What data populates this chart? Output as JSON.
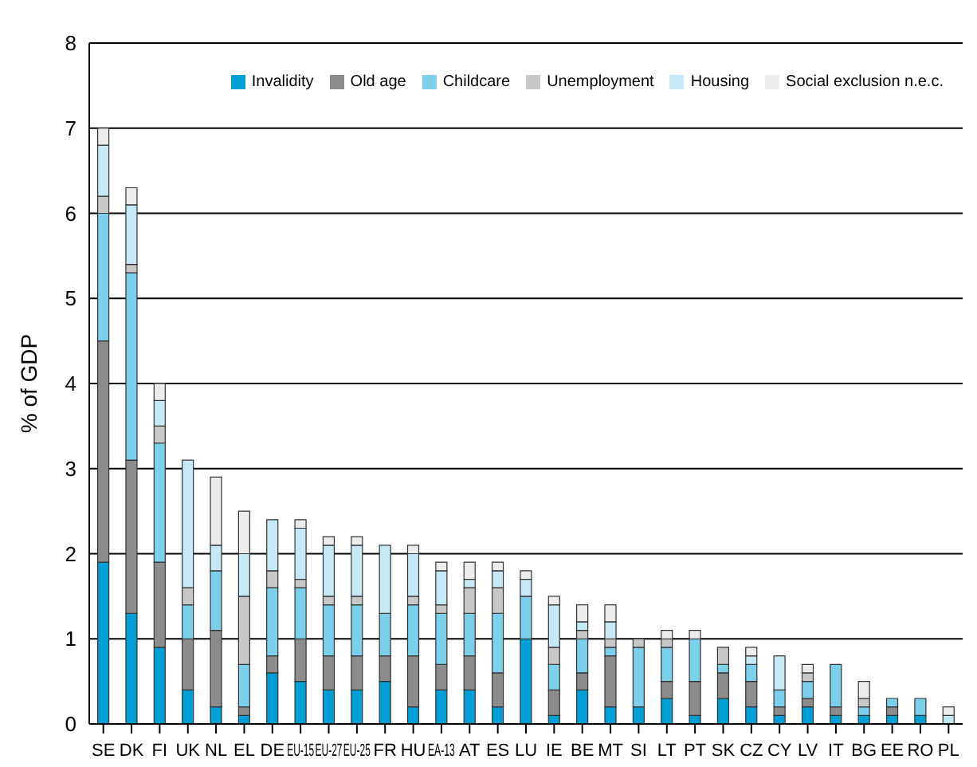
{
  "chart_data": {
    "type": "bar",
    "stacked": true,
    "ylabel": "% of GDP",
    "categories": [
      "SE",
      "DK",
      "FI",
      "UK",
      "NL",
      "EL",
      "DE",
      "EU-15",
      "EU-27",
      "EU-25",
      "FR",
      "HU",
      "EA-13",
      "AT",
      "ES",
      "LU",
      "IE",
      "BE",
      "MT",
      "SI",
      "LT",
      "PT",
      "SK",
      "CZ",
      "CY",
      "LV",
      "IT",
      "BG",
      "EE",
      "RO",
      "PL"
    ],
    "series": [
      {
        "name": "Invalidity",
        "color": "#00a0d6",
        "values": [
          1.9,
          1.3,
          0.9,
          0.4,
          0.2,
          0.1,
          0.6,
          0.5,
          0.4,
          0.4,
          0.5,
          0.2,
          0.4,
          0.4,
          0.2,
          1.0,
          0.1,
          0.4,
          0.2,
          0.2,
          0.3,
          0.1,
          0.3,
          0.2,
          0.1,
          0.2,
          0.1,
          0.1,
          0.1,
          0.1,
          0
        ]
      },
      {
        "name": "Old age",
        "color": "#8c8c8c",
        "values": [
          2.6,
          1.8,
          1.0,
          0.6,
          0.9,
          0.1,
          0.2,
          0.5,
          0.4,
          0.4,
          0.3,
          0.6,
          0.3,
          0.4,
          0.4,
          0,
          0.3,
          0.2,
          0.6,
          0,
          0.2,
          0.4,
          0.3,
          0.3,
          0.1,
          0.1,
          0.1,
          0,
          0.1,
          0,
          0
        ]
      },
      {
        "name": "Childcare",
        "color": "#7dd0ec",
        "values": [
          1.5,
          2.2,
          1.4,
          0.4,
          0.7,
          0.5,
          0.8,
          0.6,
          0.6,
          0.6,
          0.5,
          0.6,
          0.6,
          0.5,
          0.7,
          0.5,
          0.3,
          0.4,
          0.1,
          0.7,
          0.4,
          0.5,
          0.1,
          0.2,
          0.2,
          0.2,
          0.5,
          0.1,
          0.1,
          0.2,
          0
        ]
      },
      {
        "name": "Unemployment",
        "color": "#c8c8c8",
        "values": [
          0.2,
          0.1,
          0.2,
          0.2,
          0,
          0.8,
          0.2,
          0.1,
          0.1,
          0.1,
          0,
          0.1,
          0.1,
          0.3,
          0.3,
          0,
          0.2,
          0.1,
          0.1,
          0.1,
          0.1,
          0,
          0.2,
          0,
          0,
          0.1,
          0,
          0.1,
          0,
          0,
          0
        ]
      },
      {
        "name": "Housing",
        "color": "#c5e9f7",
        "values": [
          0.6,
          0.7,
          0.3,
          1.5,
          0.3,
          0.5,
          0.6,
          0.6,
          0.6,
          0.6,
          0.8,
          0.5,
          0.4,
          0.1,
          0.2,
          0.2,
          0.5,
          0.1,
          0.2,
          0,
          0,
          0,
          0,
          0.1,
          0.4,
          0,
          0,
          0,
          0,
          0,
          0.1
        ]
      },
      {
        "name": "Social exclusion n.e.c.",
        "color": "#ececec",
        "values": [
          0.2,
          0.2,
          0.2,
          0,
          0.8,
          0.5,
          0,
          0.1,
          0.1,
          0.1,
          0,
          0.1,
          0.1,
          0.2,
          0.1,
          0.1,
          0.1,
          0.2,
          0.2,
          0,
          0.1,
          0.1,
          0,
          0.1,
          0,
          0.1,
          0,
          0.2,
          0,
          0,
          0.1
        ]
      }
    ],
    "ylim": [
      0,
      8
    ],
    "yticks": [
      0,
      1,
      2,
      3,
      4,
      5,
      6,
      7,
      8
    ],
    "grid": "y",
    "legend": "top right"
  }
}
